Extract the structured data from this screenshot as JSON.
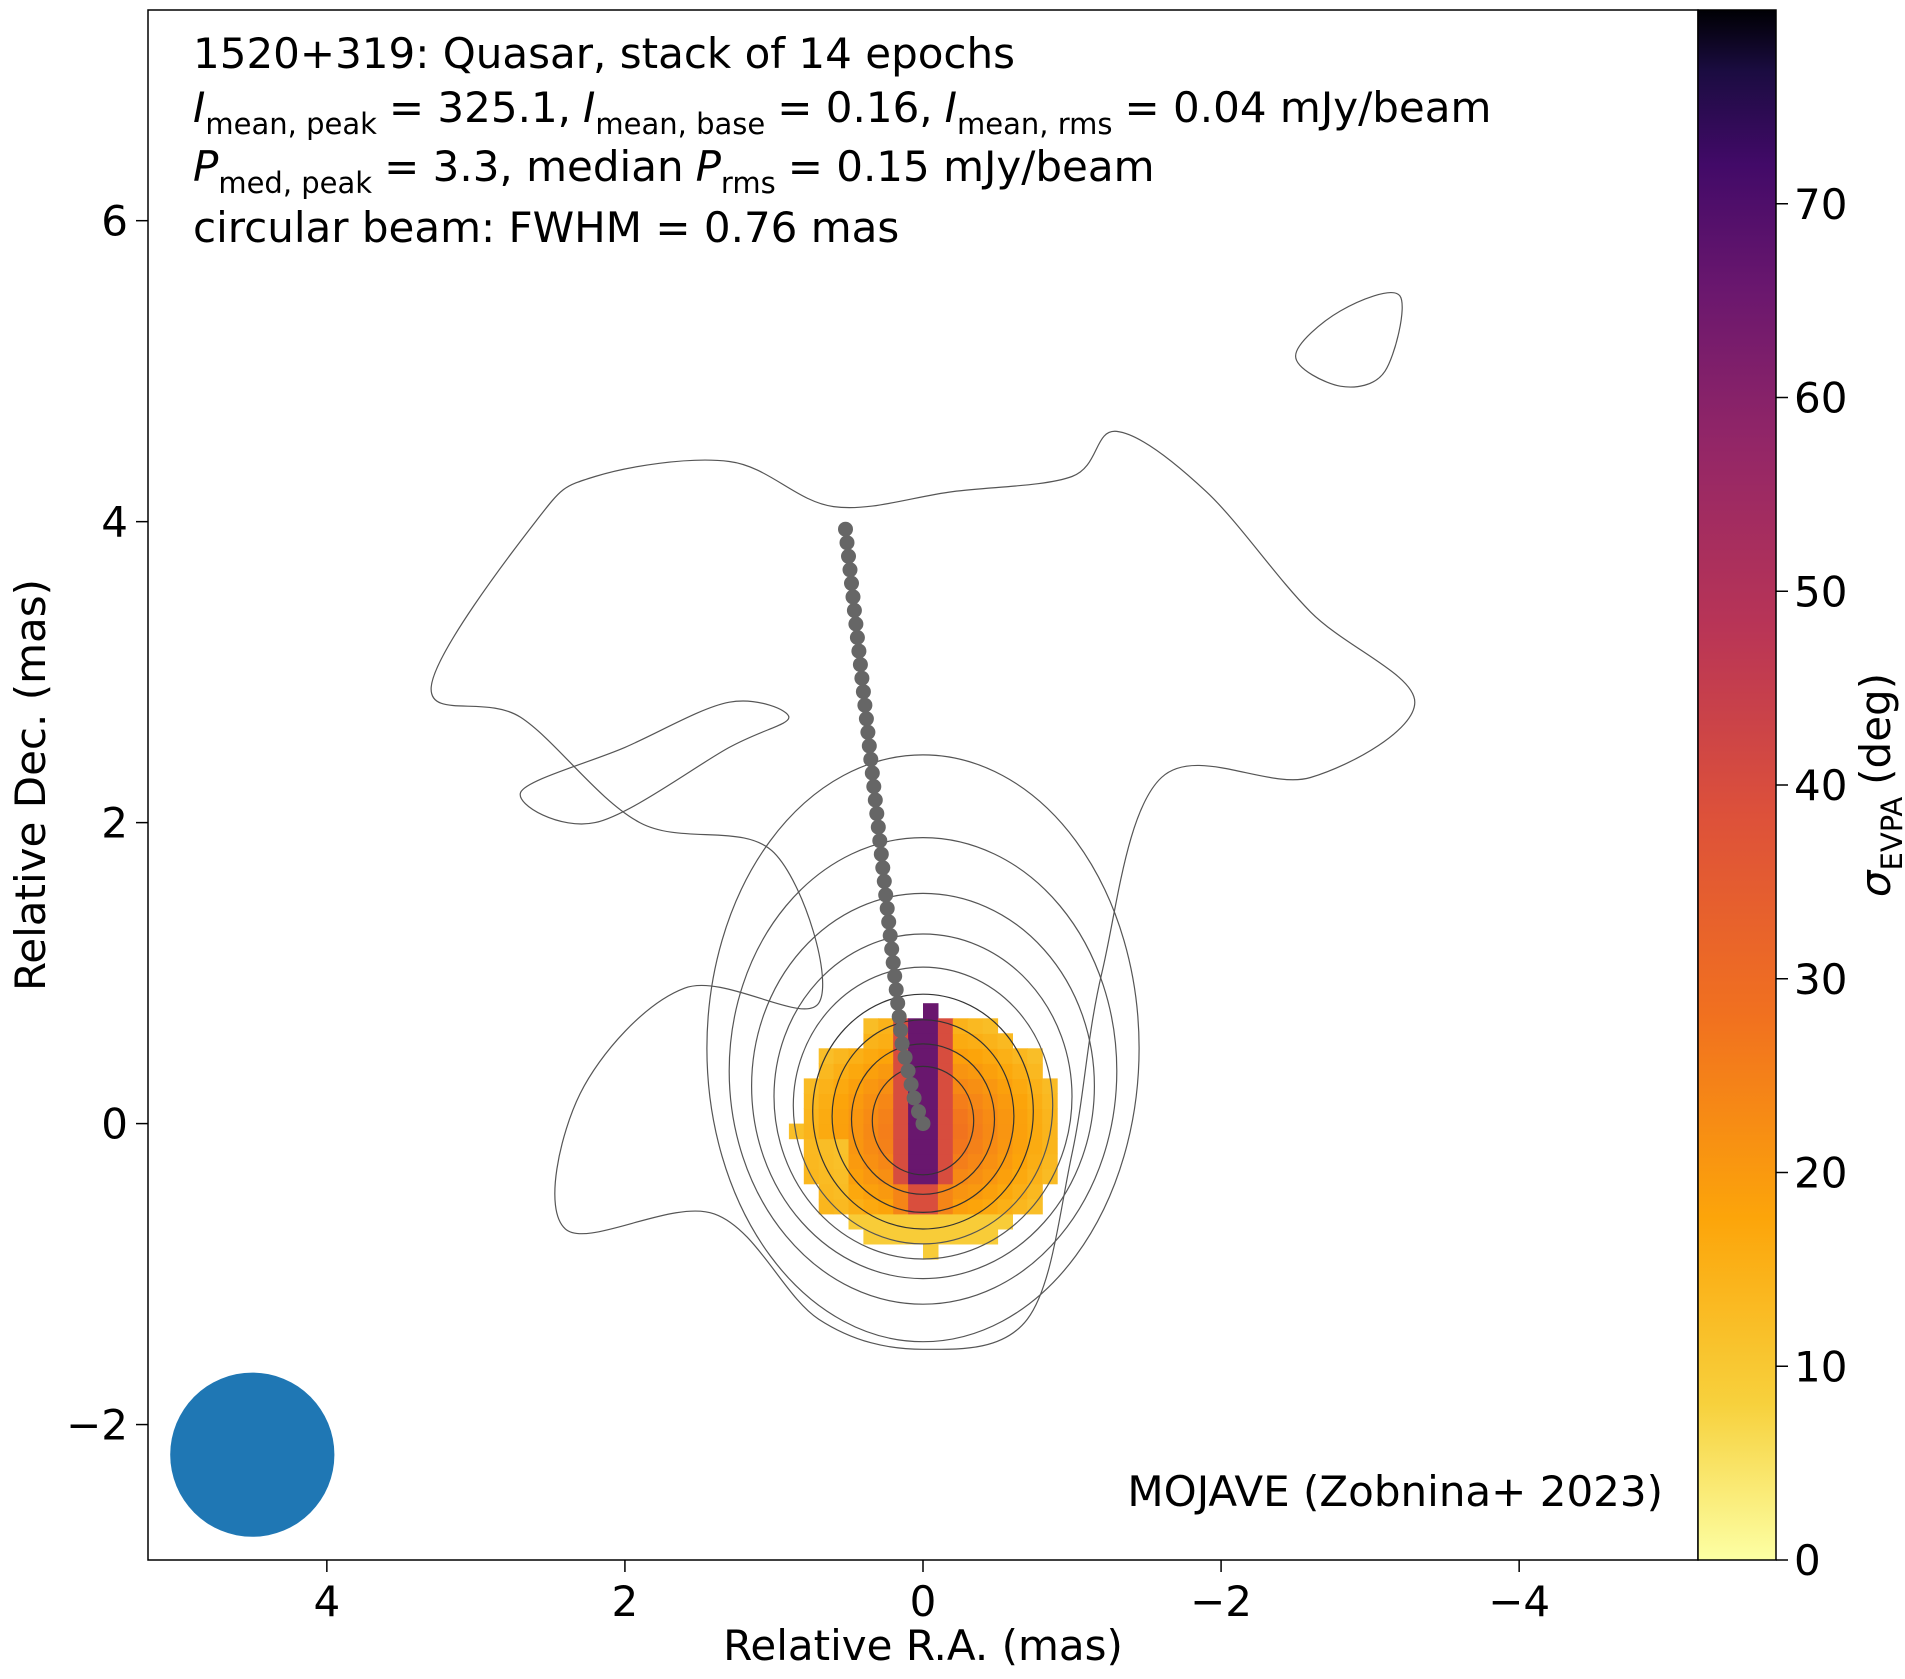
{
  "chart_data": {
    "type": "heatmap",
    "annotation": {
      "line1": "1520+319: Quasar, stack of 14 epochs",
      "line2": {
        "i_peak_label": "mean, peak",
        "i_peak_value": "= 325.1,",
        "i_base_label": "mean, base",
        "i_base_value": "= 0.16,",
        "i_rms_label": "mean, rms",
        "i_rms_value": "= 0.04 mJy/beam",
        "symbol": "I"
      },
      "line3": {
        "symbol": "P",
        "p_peak_label": "med, peak",
        "p_peak_value": "= 3.3, median",
        "p_rms_label": "rms",
        "p_rms_value": "= 0.15 mJy/beam"
      },
      "line4": "circular beam: FWHM = 0.76 mas",
      "credit": "MOJAVE (Zobnina+ 2023)"
    },
    "xlabel": "Relative R.A. (mas)",
    "ylabel": "Relative Dec. (mas)",
    "xlim": [
      5.2,
      -5.2
    ],
    "ylim": [
      -2.9,
      7.4
    ],
    "xticks": [
      4,
      2,
      0,
      -2,
      -4
    ],
    "xtick_labels": [
      "4",
      "2",
      "0",
      "−2",
      "−4"
    ],
    "yticks": [
      -2,
      0,
      2,
      4,
      6
    ],
    "ytick_labels": [
      "−2",
      "0",
      "2",
      "4",
      "6"
    ],
    "colorbar": {
      "label_symbol": "σ",
      "label_sub": "EVPA",
      "label_unit": "(deg)",
      "range": [
        0,
        80
      ],
      "ticks": [
        0,
        10,
        20,
        30,
        40,
        50,
        60,
        70
      ],
      "tick_labels": [
        "0",
        "10",
        "20",
        "30",
        "40",
        "50",
        "60",
        "70"
      ],
      "colormap": "inferno_r"
    },
    "beam": {
      "x": 4.5,
      "y": -2.2,
      "fwhm_mas": 0.76,
      "color": "#1f77b4"
    },
    "ridge_line": {
      "color": "#666666",
      "points": [
        [
          0.0,
          0.0
        ],
        [
          0.03,
          0.08
        ],
        [
          0.06,
          0.17
        ],
        [
          0.08,
          0.26
        ],
        [
          0.1,
          0.35
        ],
        [
          0.12,
          0.44
        ],
        [
          0.14,
          0.53
        ],
        [
          0.15,
          0.62
        ],
        [
          0.16,
          0.71
        ],
        [
          0.17,
          0.8
        ],
        [
          0.18,
          0.89
        ],
        [
          0.19,
          0.98
        ],
        [
          0.2,
          1.07
        ],
        [
          0.21,
          1.16
        ],
        [
          0.22,
          1.25
        ],
        [
          0.23,
          1.34
        ],
        [
          0.24,
          1.43
        ],
        [
          0.25,
          1.52
        ],
        [
          0.26,
          1.61
        ],
        [
          0.27,
          1.7
        ],
        [
          0.28,
          1.79
        ],
        [
          0.29,
          1.88
        ],
        [
          0.3,
          1.97
        ],
        [
          0.31,
          2.06
        ],
        [
          0.32,
          2.15
        ],
        [
          0.33,
          2.24
        ],
        [
          0.34,
          2.33
        ],
        [
          0.35,
          2.42
        ],
        [
          0.36,
          2.51
        ],
        [
          0.37,
          2.6
        ],
        [
          0.38,
          2.69
        ],
        [
          0.39,
          2.78
        ],
        [
          0.4,
          2.87
        ],
        [
          0.41,
          2.96
        ],
        [
          0.42,
          3.05
        ],
        [
          0.43,
          3.14
        ],
        [
          0.44,
          3.23
        ],
        [
          0.45,
          3.32
        ],
        [
          0.46,
          3.41
        ],
        [
          0.47,
          3.5
        ],
        [
          0.48,
          3.59
        ],
        [
          0.49,
          3.68
        ],
        [
          0.5,
          3.77
        ],
        [
          0.51,
          3.86
        ],
        [
          0.52,
          3.95
        ]
      ]
    },
    "contours": {
      "outer": [
        [
          0.7,
          0.8
        ],
        [
          1.0,
          1.8
        ],
        [
          1.9,
          2.0
        ],
        [
          2.7,
          2.7
        ],
        [
          3.3,
          2.9
        ],
        [
          2.6,
          4.0
        ],
        [
          2.2,
          4.3
        ],
        [
          1.3,
          4.4
        ],
        [
          0.6,
          4.1
        ],
        [
          -0.2,
          4.2
        ],
        [
          -1.0,
          4.3
        ],
        [
          -1.3,
          4.6
        ],
        [
          -1.9,
          4.2
        ],
        [
          -2.6,
          3.4
        ],
        [
          -3.3,
          2.8
        ],
        [
          -2.6,
          2.3
        ],
        [
          -1.6,
          2.3
        ],
        [
          -1.2,
          1.0
        ],
        [
          -1.0,
          -0.2
        ],
        [
          -0.7,
          -1.3
        ],
        [
          0.0,
          -1.5
        ],
        [
          0.7,
          -1.3
        ],
        [
          1.4,
          -0.6
        ],
        [
          2.4,
          -0.7
        ],
        [
          2.3,
          0.2
        ],
        [
          1.6,
          0.9
        ],
        [
          0.7,
          0.8
        ]
      ],
      "hole": [
        [
          2.7,
          2.2
        ],
        [
          2.0,
          2.5
        ],
        [
          1.3,
          2.8
        ],
        [
          0.9,
          2.7
        ],
        [
          1.3,
          2.5
        ],
        [
          2.2,
          2.0
        ],
        [
          2.7,
          2.2
        ]
      ],
      "north_blob": [
        [
          -2.5,
          5.1
        ],
        [
          -2.8,
          5.4
        ],
        [
          -3.2,
          5.5
        ],
        [
          -3.1,
          5.0
        ],
        [
          -2.8,
          4.9
        ],
        [
          -2.5,
          5.1
        ]
      ],
      "rings": [
        {
          "cx": 0.0,
          "cy": 0.5,
          "rx": 1.45,
          "ry": 1.95
        },
        {
          "cx": 0.0,
          "cy": 0.35,
          "rx": 1.3,
          "ry": 1.55
        },
        {
          "cx": 0.0,
          "cy": 0.25,
          "rx": 1.15,
          "ry": 1.28
        },
        {
          "cx": 0.0,
          "cy": 0.18,
          "rx": 1.0,
          "ry": 1.08
        },
        {
          "cx": 0.0,
          "cy": 0.12,
          "rx": 0.87,
          "ry": 0.92
        },
        {
          "cx": 0.0,
          "cy": 0.08,
          "rx": 0.74,
          "ry": 0.78
        },
        {
          "cx": 0.0,
          "cy": 0.05,
          "rx": 0.61,
          "ry": 0.64
        },
        {
          "cx": 0.0,
          "cy": 0.03,
          "rx": 0.48,
          "ry": 0.5
        },
        {
          "cx": 0.0,
          "cy": 0.02,
          "rx": 0.34,
          "ry": 0.36
        }
      ]
    },
    "pixel_map": {
      "description_free": true,
      "cell_mas": 0.1,
      "extent": {
        "x": [
          1.1,
          -0.8
        ],
        "y": [
          -0.9,
          0.7
        ]
      }
    }
  }
}
